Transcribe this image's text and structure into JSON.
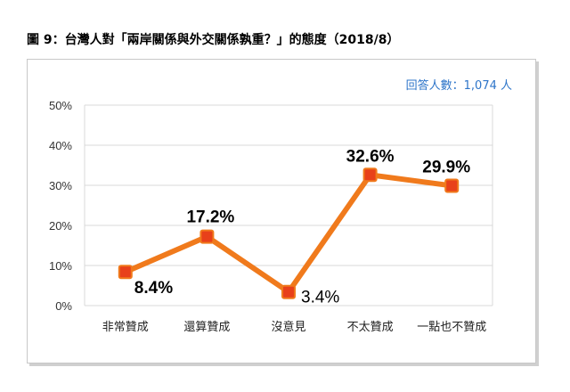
{
  "figure": {
    "title": "圖 9：台灣人對「兩岸關係與外交關係孰重？」的態度（2018/8）",
    "sample_note": "回答人數：1,074 人"
  },
  "colors": {
    "line": "#f07a1c",
    "marker_fill": "#e8401a",
    "marker_edge": "#f07a1c",
    "grid": "#d9d9d9",
    "note": "#2e75c9"
  },
  "chart_data": {
    "type": "line",
    "categories": [
      "非常贊成",
      "還算贊成",
      "沒意見",
      "不太贊成",
      "一點也不贊成"
    ],
    "values": [
      8.4,
      17.2,
      3.4,
      32.6,
      29.9
    ],
    "value_labels": [
      "8.4%",
      "17.2%",
      "3.4%",
      "32.6%",
      "29.9%"
    ],
    "yticks": [
      "0%",
      "10%",
      "20%",
      "30%",
      "40%",
      "50%"
    ],
    "ylim": [
      0,
      50
    ],
    "ylabel": "",
    "xlabel": "",
    "grid": true,
    "legend": "none"
  }
}
